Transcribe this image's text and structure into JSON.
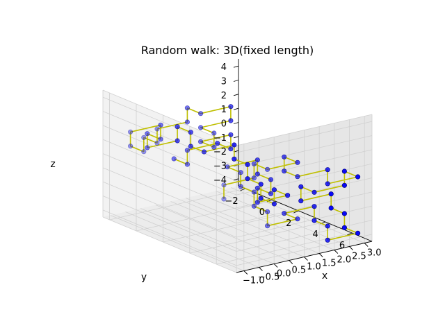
{
  "chart_data": {
    "type": "line3d",
    "title": "Random walk: 3D(fixed length)",
    "xlabel": "x",
    "ylabel": "y",
    "zlabel": "z",
    "xlim": [
      -1.25,
      3.25
    ],
    "ylim": [
      -2.5,
      7.5
    ],
    "zlim": [
      -4.5,
      4.5
    ],
    "xticks": [
      -1.0,
      -0.5,
      0.0,
      0.5,
      1.0,
      1.5,
      2.0,
      2.5,
      3.0
    ],
    "xtick_labels": [
      "−1.0",
      "−0.5",
      "0.0",
      "0.5",
      "1.0",
      "1.5",
      "2.0",
      "2.5",
      "3.0"
    ],
    "yticks": [
      -2,
      0,
      2,
      4,
      6
    ],
    "ytick_labels": [
      "−2",
      "0",
      "2",
      "4",
      "6"
    ],
    "zticks": [
      -4,
      -3,
      -2,
      -1,
      0,
      1,
      2,
      3,
      4
    ],
    "ztick_labels": [
      "−4",
      "−3",
      "−2",
      "−1",
      "0",
      "1",
      "2",
      "3",
      "4"
    ],
    "grid": true,
    "line_color": "#bfbf00",
    "marker_color": "#0000ff",
    "marker_edge_color": "#000080",
    "pane_color": "#f2f2f2",
    "grid_color": "#d0d0d0",
    "points": [
      [
        0,
        0,
        0
      ],
      [
        0,
        1,
        0
      ],
      [
        0,
        1,
        1
      ],
      [
        1,
        1,
        1
      ],
      [
        1,
        2,
        1
      ],
      [
        1,
        2,
        2
      ],
      [
        0,
        2,
        2
      ],
      [
        0,
        3,
        2
      ],
      [
        0,
        3,
        3
      ],
      [
        0,
        2,
        3
      ],
      [
        1,
        2,
        3
      ],
      [
        1,
        2,
        4
      ],
      [
        0,
        2,
        4
      ],
      [
        0,
        1,
        4
      ],
      [
        0,
        1,
        3
      ],
      [
        -1,
        1,
        3
      ],
      [
        -1,
        1,
        2
      ],
      [
        -1,
        0,
        2
      ],
      [
        -1,
        0,
        1
      ],
      [
        -1,
        -1,
        1
      ],
      [
        -1,
        -1,
        2
      ],
      [
        0,
        -1,
        2
      ],
      [
        0,
        -1,
        1
      ],
      [
        0,
        -2,
        1
      ],
      [
        0,
        -2,
        0
      ],
      [
        1,
        -2,
        0
      ],
      [
        1,
        -2,
        1
      ],
      [
        1,
        -1,
        1
      ],
      [
        1,
        -1,
        0
      ],
      [
        1,
        0,
        0
      ],
      [
        2,
        0,
        0
      ],
      [
        2,
        0,
        -1
      ],
      [
        2,
        1,
        -1
      ],
      [
        2,
        1,
        -2
      ],
      [
        2,
        2,
        -2
      ],
      [
        2,
        2,
        -3
      ],
      [
        2,
        3,
        -3
      ],
      [
        2,
        3,
        -2
      ],
      [
        2,
        4,
        -2
      ],
      [
        1,
        4,
        -2
      ],
      [
        1,
        4,
        -1
      ],
      [
        1,
        5,
        -1
      ],
      [
        1,
        5,
        0
      ],
      [
        1,
        4,
        0
      ],
      [
        1,
        4,
        1
      ],
      [
        0,
        4,
        1
      ],
      [
        0,
        5,
        1
      ],
      [
        0,
        5,
        0
      ],
      [
        0,
        6,
        0
      ],
      [
        0,
        6,
        -1
      ],
      [
        0,
        7,
        -1
      ],
      [
        0,
        7,
        -2
      ],
      [
        1,
        7,
        -2
      ],
      [
        1,
        6,
        -2
      ],
      [
        2,
        6,
        -2
      ],
      [
        2,
        6,
        -3
      ],
      [
        2,
        7,
        -3
      ],
      [
        2,
        7,
        -4
      ],
      [
        3,
        7,
        -4
      ],
      [
        3,
        6,
        -4
      ],
      [
        3,
        6,
        -3
      ],
      [
        3,
        5,
        -3
      ],
      [
        3,
        5,
        -2
      ],
      [
        2,
        5,
        -2
      ],
      [
        2,
        5,
        -1
      ],
      [
        2,
        6,
        -1
      ],
      [
        3,
        6,
        -1
      ],
      [
        3,
        6,
        0
      ],
      [
        3,
        7,
        0
      ],
      [
        2,
        7,
        0
      ],
      [
        2,
        7,
        1
      ],
      [
        1,
        7,
        1
      ],
      [
        1,
        6,
        1
      ],
      [
        1,
        6,
        2
      ],
      [
        1,
        7,
        2
      ],
      [
        0,
        7,
        2
      ],
      [
        0,
        6,
        2
      ],
      [
        0,
        6,
        1
      ],
      [
        -1,
        6,
        1
      ],
      [
        -1,
        6,
        0
      ]
    ]
  }
}
